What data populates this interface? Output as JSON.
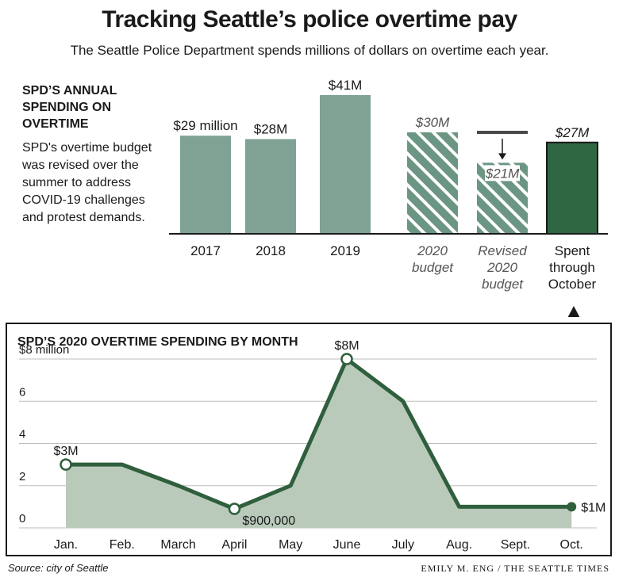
{
  "header": {
    "title": "Tracking Seattle’s police overtime pay",
    "subtitle": "The Seattle Police Department spends millions of dollars on overtime each year."
  },
  "annual": {
    "heading": "SPD’S ANNUAL SPENDING ON OVERTIME",
    "note": "SPD's overtime budget was revised over the summer to address COVID-19 challenges and protest demands."
  },
  "monthly": {
    "heading": "SPD’S 2020 OVERTIME SPENDING BY MONTH"
  },
  "footer": {
    "source": "Source: city of Seattle",
    "credit": "EMILY M. ENG / THE SEATTLE TIMES"
  },
  "colors": {
    "bar": "#7fa294",
    "hatch_base": "#6b9683",
    "spent": "#2f6743",
    "line": "#2f5f3c",
    "area": "#b9cabb",
    "grid": "#bdbdbd"
  },
  "chart_data": [
    {
      "type": "bar",
      "title": "SPD’S ANNUAL SPENDING ON OVERTIME",
      "units": "millions of dollars",
      "ylim": [
        0,
        41
      ],
      "grid": false,
      "bars": [
        {
          "category": "2017",
          "value": 29,
          "label": "$29 million",
          "style": "solid"
        },
        {
          "category": "2018",
          "value": 28,
          "label": "$28M",
          "style": "solid"
        },
        {
          "category": "2019",
          "value": 41,
          "label": "$41M",
          "style": "solid"
        },
        {
          "category": "2020 budget",
          "value": 30,
          "label": "$30M",
          "style": "hatched"
        },
        {
          "category": "Revised 2020 budget",
          "value": 21,
          "label": "$21M",
          "style": "hatched",
          "revised_from": 30
        },
        {
          "category": "Spent through October",
          "value": 27,
          "label": "$27M",
          "style": "dark"
        }
      ],
      "category_labels": [
        [
          "2017"
        ],
        [
          "2018"
        ],
        [
          "2019"
        ],
        [
          "2020",
          "budget"
        ],
        [
          "Revised",
          "2020",
          "budget"
        ],
        [
          "Spent",
          "through",
          "October"
        ]
      ]
    },
    {
      "type": "area",
      "title": "SPD’S 2020 OVERTIME SPENDING BY MONTH",
      "units": "millions of dollars",
      "categories": [
        "Jan.",
        "Feb.",
        "March",
        "April",
        "May",
        "June",
        "July",
        "Aug.",
        "Sept.",
        "Oct."
      ],
      "values": [
        3,
        3,
        2,
        0.9,
        2,
        8,
        6,
        1,
        1,
        1
      ],
      "ylim": [
        0,
        8
      ],
      "yticks": [
        0,
        2,
        4,
        6,
        8
      ],
      "ytick_labels": [
        "0",
        "2",
        "4",
        "6",
        "$8 million"
      ],
      "grid": true,
      "annotations": [
        {
          "index": 0,
          "label": "$3M",
          "marker": "open"
        },
        {
          "index": 3,
          "label": "$900,000",
          "marker": "open"
        },
        {
          "index": 5,
          "label": "$8M",
          "marker": "open"
        },
        {
          "index": 9,
          "label": "$1M",
          "marker": "filled"
        }
      ]
    }
  ]
}
